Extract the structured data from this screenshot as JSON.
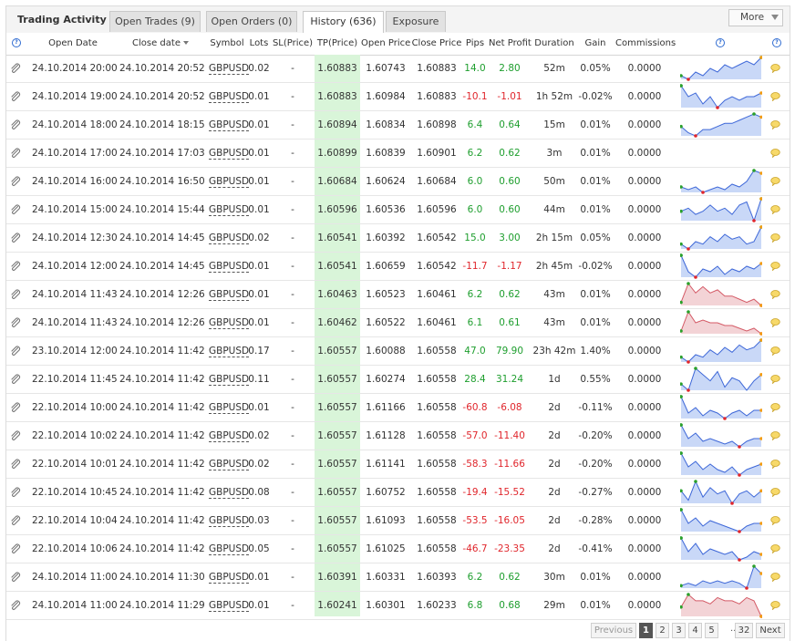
{
  "title": "Trading Activity",
  "tabs": [
    {
      "label": "Open Trades (9)"
    },
    {
      "label": "Open Orders (0)"
    },
    {
      "label": "History (636)"
    },
    {
      "label": "Exposure"
    }
  ],
  "more_label": "More",
  "columns": {
    "open_date": "Open Date",
    "close_date": "Close date",
    "symbol": "Symbol",
    "lots": "Lots",
    "sl": "SL(Price)",
    "tp": "TP(Price)",
    "open_price": "Open Price",
    "close_price": "Close Price",
    "pips": "Pips",
    "net_profit": "Net Profit",
    "duration": "Duration",
    "gain": "Gain",
    "commissions": "Commissions",
    "help_glyph": "?"
  },
  "colors": {
    "positive": "#1e9e2e",
    "negative": "#e0262c",
    "tp_highlight": "#d9f5d9",
    "spark_up": "#c9d8f7",
    "spark_down": "#f3d3d6"
  },
  "rows": [
    {
      "open": "24.10.2014 20:00",
      "close": "24.10.2014 20:52",
      "symbol": "GBPUSD",
      "lots": "0.02",
      "sl": "-",
      "tp": "1.60883",
      "open_price": "1.60743",
      "close_price": "1.60883",
      "pips": "14.0",
      "profit": "2.80",
      "duration": "52m",
      "gain": "0.05%",
      "comm": "0.0000",
      "sign": "pos",
      "spark": "up",
      "series": [
        5,
        4,
        6,
        5,
        7,
        6,
        8,
        7,
        8,
        9,
        8,
        10
      ]
    },
    {
      "open": "24.10.2014 19:00",
      "close": "24.10.2014 20:52",
      "symbol": "GBPUSD",
      "lots": "0.01",
      "sl": "-",
      "tp": "1.60883",
      "open_price": "1.60984",
      "close_price": "1.60883",
      "pips": "-10.1",
      "profit": "-1.01",
      "duration": "1h 52m",
      "gain": "-0.02%",
      "comm": "0.0000",
      "sign": "neg",
      "spark": "up",
      "series": [
        9,
        6,
        7,
        4,
        6,
        3,
        5,
        6,
        5,
        6,
        6,
        7
      ]
    },
    {
      "open": "24.10.2014 18:00",
      "close": "24.10.2014 18:15",
      "symbol": "GBPUSD",
      "lots": "0.01",
      "sl": "-",
      "tp": "1.60894",
      "open_price": "1.60834",
      "close_price": "1.60898",
      "pips": "6.4",
      "profit": "0.64",
      "duration": "15m",
      "gain": "0.01%",
      "comm": "0.0000",
      "sign": "pos",
      "spark": "up",
      "series": [
        4,
        2,
        1,
        3,
        3,
        4,
        5,
        5,
        6,
        7,
        8,
        7
      ]
    },
    {
      "open": "24.10.2014 17:00",
      "close": "24.10.2014 17:03",
      "symbol": "GBPUSD",
      "lots": "0.01",
      "sl": "-",
      "tp": "1.60899",
      "open_price": "1.60839",
      "close_price": "1.60901",
      "pips": "6.2",
      "profit": "0.62",
      "duration": "3m",
      "gain": "0.01%",
      "comm": "0.0000",
      "sign": "pos",
      "spark": "none",
      "series": []
    },
    {
      "open": "24.10.2014 16:00",
      "close": "24.10.2014 16:50",
      "symbol": "GBPUSD",
      "lots": "0.01",
      "sl": "-",
      "tp": "1.60684",
      "open_price": "1.60624",
      "close_price": "1.60684",
      "pips": "6.0",
      "profit": "0.60",
      "duration": "50m",
      "gain": "0.01%",
      "comm": "0.0000",
      "sign": "pos",
      "spark": "up",
      "series": [
        3,
        2,
        3,
        1,
        2,
        3,
        2,
        4,
        3,
        5,
        9,
        8
      ]
    },
    {
      "open": "24.10.2014 15:00",
      "close": "24.10.2014 15:44",
      "symbol": "GBPUSD",
      "lots": "0.01",
      "sl": "-",
      "tp": "1.60596",
      "open_price": "1.60536",
      "close_price": "1.60596",
      "pips": "6.0",
      "profit": "0.60",
      "duration": "44m",
      "gain": "0.01%",
      "comm": "0.0000",
      "sign": "pos",
      "spark": "up",
      "series": [
        4,
        5,
        3,
        4,
        6,
        4,
        5,
        3,
        6,
        7,
        1,
        8
      ]
    },
    {
      "open": "24.10.2014 12:30",
      "close": "24.10.2014 14:45",
      "symbol": "GBPUSD",
      "lots": "0.02",
      "sl": "-",
      "tp": "1.60541",
      "open_price": "1.60392",
      "close_price": "1.60542",
      "pips": "15.0",
      "profit": "3.00",
      "duration": "2h 15m",
      "gain": "0.05%",
      "comm": "0.0000",
      "sign": "pos",
      "spark": "up",
      "series": [
        3,
        1,
        4,
        3,
        6,
        4,
        7,
        5,
        6,
        3,
        4,
        10
      ]
    },
    {
      "open": "24.10.2014 12:00",
      "close": "24.10.2014 14:45",
      "symbol": "GBPUSD",
      "lots": "0.01",
      "sl": "-",
      "tp": "1.60541",
      "open_price": "1.60659",
      "close_price": "1.60542",
      "pips": "-11.7",
      "profit": "-1.17",
      "duration": "2h 45m",
      "gain": "-0.02%",
      "comm": "0.0000",
      "sign": "neg",
      "spark": "up",
      "series": [
        9,
        3,
        1,
        4,
        3,
        5,
        2,
        4,
        3,
        5,
        4,
        6
      ]
    },
    {
      "open": "24.10.2014 11:43",
      "close": "24.10.2014 12:26",
      "symbol": "GBPUSD",
      "lots": "0.01",
      "sl": "-",
      "tp": "1.60463",
      "open_price": "1.60523",
      "close_price": "1.60461",
      "pips": "6.2",
      "profit": "0.62",
      "duration": "43m",
      "gain": "0.01%",
      "comm": "0.0000",
      "sign": "pos",
      "spark": "down",
      "series": [
        2,
        8,
        5,
        7,
        5,
        6,
        4,
        4,
        3,
        2,
        3,
        1
      ]
    },
    {
      "open": "24.10.2014 11:43",
      "close": "24.10.2014 12:26",
      "symbol": "GBPUSD",
      "lots": "0.01",
      "sl": "-",
      "tp": "1.60462",
      "open_price": "1.60522",
      "close_price": "1.60461",
      "pips": "6.1",
      "profit": "0.61",
      "duration": "43m",
      "gain": "0.01%",
      "comm": "0.0000",
      "sign": "pos",
      "spark": "down",
      "series": [
        2,
        9,
        5,
        6,
        5,
        5,
        4,
        4,
        3,
        2,
        3,
        1
      ]
    },
    {
      "open": "23.10.2014 12:00",
      "close": "24.10.2014 11:42",
      "symbol": "GBPUSD",
      "lots": "0.17",
      "sl": "-",
      "tp": "1.60557",
      "open_price": "1.60088",
      "close_price": "1.60558",
      "pips": "47.0",
      "profit": "79.90",
      "duration": "23h 42m",
      "gain": "1.40%",
      "comm": "0.0000",
      "sign": "pos",
      "spark": "up",
      "series": [
        3,
        1,
        4,
        3,
        6,
        4,
        7,
        5,
        8,
        6,
        7,
        10
      ]
    },
    {
      "open": "22.10.2014 11:45",
      "close": "24.10.2014 11:42",
      "symbol": "GBPUSD",
      "lots": "0.11",
      "sl": "-",
      "tp": "1.60557",
      "open_price": "1.60274",
      "close_price": "1.60558",
      "pips": "28.4",
      "profit": "31.24",
      "duration": "1d",
      "gain": "0.55%",
      "comm": "0.0000",
      "sign": "pos",
      "spark": "up",
      "series": [
        4,
        2,
        9,
        7,
        5,
        8,
        3,
        6,
        5,
        2,
        5,
        7
      ]
    },
    {
      "open": "22.10.2014 10:00",
      "close": "24.10.2014 11:42",
      "symbol": "GBPUSD",
      "lots": "0.01",
      "sl": "-",
      "tp": "1.60557",
      "open_price": "1.61166",
      "close_price": "1.60558",
      "pips": "-60.8",
      "profit": "-6.08",
      "duration": "2d",
      "gain": "-0.11%",
      "comm": "0.0000",
      "sign": "neg",
      "spark": "up",
      "series": [
        9,
        3,
        5,
        2,
        4,
        3,
        1,
        3,
        4,
        2,
        4,
        4
      ]
    },
    {
      "open": "22.10.2014 10:02",
      "close": "24.10.2014 11:42",
      "symbol": "GBPUSD",
      "lots": "0.02",
      "sl": "-",
      "tp": "1.60557",
      "open_price": "1.61128",
      "close_price": "1.60558",
      "pips": "-57.0",
      "profit": "-11.40",
      "duration": "2d",
      "gain": "-0.20%",
      "comm": "0.0000",
      "sign": "neg",
      "spark": "up",
      "series": [
        9,
        4,
        6,
        3,
        4,
        3,
        2,
        3,
        1,
        3,
        4,
        4
      ]
    },
    {
      "open": "22.10.2014 10:01",
      "close": "24.10.2014 11:42",
      "symbol": "GBPUSD",
      "lots": "0.02",
      "sl": "-",
      "tp": "1.60557",
      "open_price": "1.61141",
      "close_price": "1.60558",
      "pips": "-58.3",
      "profit": "-11.66",
      "duration": "2d",
      "gain": "-0.20%",
      "comm": "0.0000",
      "sign": "neg",
      "spark": "up",
      "series": [
        9,
        4,
        6,
        3,
        5,
        3,
        2,
        4,
        1,
        3,
        4,
        5
      ]
    },
    {
      "open": "22.10.2014 10:45",
      "close": "24.10.2014 11:42",
      "symbol": "GBPUSD",
      "lots": "0.08",
      "sl": "-",
      "tp": "1.60557",
      "open_price": "1.60752",
      "close_price": "1.60558",
      "pips": "-19.4",
      "profit": "-15.52",
      "duration": "2d",
      "gain": "-0.27%",
      "comm": "0.0000",
      "sign": "neg",
      "spark": "up",
      "series": [
        6,
        3,
        9,
        4,
        7,
        5,
        6,
        2,
        5,
        6,
        4,
        6
      ]
    },
    {
      "open": "22.10.2014 10:04",
      "close": "24.10.2014 11:42",
      "symbol": "GBPUSD",
      "lots": "0.03",
      "sl": "-",
      "tp": "1.60557",
      "open_price": "1.61093",
      "close_price": "1.60558",
      "pips": "-53.5",
      "profit": "-16.05",
      "duration": "2d",
      "gain": "-0.28%",
      "comm": "0.0000",
      "sign": "neg",
      "spark": "up",
      "series": [
        9,
        4,
        6,
        3,
        5,
        4,
        3,
        2,
        1,
        3,
        4,
        4
      ]
    },
    {
      "open": "22.10.2014 10:06",
      "close": "24.10.2014 11:42",
      "symbol": "GBPUSD",
      "lots": "0.05",
      "sl": "-",
      "tp": "1.60557",
      "open_price": "1.61025",
      "close_price": "1.60558",
      "pips": "-46.7",
      "profit": "-23.35",
      "duration": "2d",
      "gain": "-0.41%",
      "comm": "0.0000",
      "sign": "neg",
      "spark": "up",
      "series": [
        9,
        4,
        7,
        3,
        5,
        4,
        3,
        4,
        1,
        2,
        4,
        3
      ]
    },
    {
      "open": "24.10.2014 11:00",
      "close": "24.10.2014 11:30",
      "symbol": "GBPUSD",
      "lots": "0.01",
      "sl": "-",
      "tp": "1.60391",
      "open_price": "1.60331",
      "close_price": "1.60393",
      "pips": "6.2",
      "profit": "0.62",
      "duration": "30m",
      "gain": "0.01%",
      "comm": "0.0000",
      "sign": "pos",
      "spark": "up",
      "series": [
        2,
        3,
        2,
        4,
        3,
        4,
        3,
        4,
        3,
        1,
        10,
        7
      ]
    },
    {
      "open": "24.10.2014 11:00",
      "close": "24.10.2014 11:29",
      "symbol": "GBPUSD",
      "lots": "0.01",
      "sl": "-",
      "tp": "1.60241",
      "open_price": "1.60301",
      "close_price": "1.60233",
      "pips": "6.8",
      "profit": "0.68",
      "duration": "29m",
      "gain": "0.01%",
      "comm": "0.0000",
      "sign": "pos",
      "spark": "down",
      "series": [
        4,
        8,
        6,
        6,
        5,
        7,
        6,
        6,
        5,
        7,
        6,
        1
      ]
    }
  ],
  "pagination": {
    "previous": "Previous",
    "pages": [
      "1",
      "2",
      "3",
      "4",
      "5"
    ],
    "ellipsis": "..",
    "last": "32",
    "next": "Next",
    "current": "1"
  }
}
